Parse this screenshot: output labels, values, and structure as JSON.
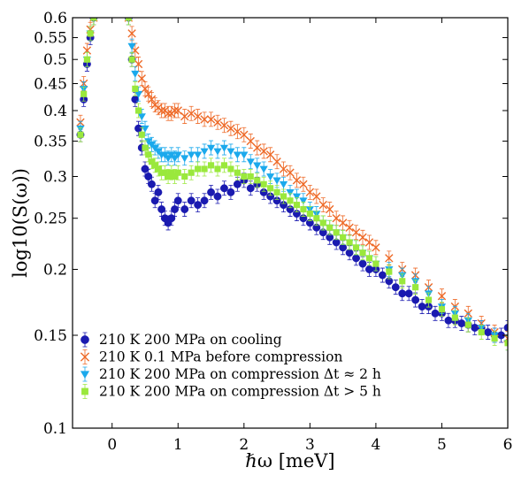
{
  "chart_data": {
    "type": "scatter",
    "title": "",
    "xlabel": "ℏω [meV]",
    "ylabel": "log10(S(ω))",
    "xlim": [
      -0.6,
      6
    ],
    "ylim": [
      0.1,
      0.6
    ],
    "y_scale": "log",
    "grid": false,
    "legend_position": "bottom-left",
    "xticks": [
      "0",
      "1",
      "2",
      "3",
      "4",
      "5",
      "6"
    ],
    "yticks": [
      "0.1",
      "0.15",
      "0.2",
      "0.25",
      "0.3",
      "0.35",
      "0.4",
      "0.45",
      "0.5",
      "0.55",
      "0.6"
    ],
    "series": [
      {
        "name": "210 K 200 MPa on cooling",
        "color": "#1a1ab0",
        "marker": "circle",
        "x": [
          -0.48,
          -0.43,
          -0.38,
          -0.33,
          -0.28,
          0.25,
          0.3,
          0.35,
          0.4,
          0.45,
          0.5,
          0.55,
          0.6,
          0.65,
          0.7,
          0.75,
          0.8,
          0.85,
          0.9,
          0.95,
          1.0,
          1.1,
          1.2,
          1.3,
          1.4,
          1.5,
          1.6,
          1.7,
          1.8,
          1.9,
          2.0,
          2.1,
          2.2,
          2.3,
          2.4,
          2.5,
          2.6,
          2.7,
          2.8,
          2.9,
          3.0,
          3.1,
          3.2,
          3.3,
          3.4,
          3.5,
          3.6,
          3.7,
          3.8,
          3.9,
          4.0,
          4.1,
          4.2,
          4.3,
          4.4,
          4.5,
          4.6,
          4.7,
          4.8,
          4.9,
          5.0,
          5.1,
          5.2,
          5.3,
          5.4,
          5.5,
          5.6,
          5.7,
          5.8,
          5.9,
          6.0
        ],
        "y": [
          0.36,
          0.42,
          0.49,
          0.55,
          0.6,
          0.6,
          0.5,
          0.42,
          0.37,
          0.34,
          0.31,
          0.3,
          0.29,
          0.27,
          0.28,
          0.26,
          0.25,
          0.245,
          0.25,
          0.26,
          0.27,
          0.26,
          0.27,
          0.265,
          0.27,
          0.28,
          0.275,
          0.285,
          0.28,
          0.29,
          0.295,
          0.285,
          0.29,
          0.28,
          0.275,
          0.27,
          0.265,
          0.26,
          0.255,
          0.25,
          0.245,
          0.24,
          0.235,
          0.23,
          0.225,
          0.22,
          0.215,
          0.21,
          0.205,
          0.2,
          0.2,
          0.195,
          0.19,
          0.185,
          0.18,
          0.18,
          0.175,
          0.17,
          0.17,
          0.165,
          0.165,
          0.16,
          0.16,
          0.158,
          0.157,
          0.155,
          0.155,
          0.152,
          0.15,
          0.15,
          0.155
        ]
      },
      {
        "name": "210 K 0.1 MPa before compression",
        "color": "#ee6a28",
        "marker": "x",
        "x": [
          -0.48,
          -0.43,
          -0.38,
          -0.33,
          -0.28,
          0.25,
          0.3,
          0.35,
          0.4,
          0.45,
          0.5,
          0.55,
          0.6,
          0.65,
          0.7,
          0.75,
          0.8,
          0.85,
          0.9,
          0.95,
          1.0,
          1.1,
          1.2,
          1.3,
          1.4,
          1.5,
          1.6,
          1.7,
          1.8,
          1.9,
          2.0,
          2.1,
          2.2,
          2.3,
          2.4,
          2.5,
          2.6,
          2.7,
          2.8,
          2.9,
          3.0,
          3.1,
          3.2,
          3.3,
          3.4,
          3.5,
          3.6,
          3.7,
          3.8,
          3.9,
          4.0,
          4.2,
          4.4,
          4.6,
          4.8,
          5.0,
          5.2,
          5.4,
          5.6,
          5.8,
          6.0
        ],
        "y": [
          0.38,
          0.45,
          0.52,
          0.57,
          0.6,
          0.6,
          0.56,
          0.52,
          0.49,
          0.46,
          0.44,
          0.43,
          0.42,
          0.41,
          0.405,
          0.4,
          0.4,
          0.395,
          0.395,
          0.4,
          0.4,
          0.39,
          0.395,
          0.39,
          0.385,
          0.385,
          0.38,
          0.375,
          0.37,
          0.365,
          0.36,
          0.35,
          0.34,
          0.335,
          0.33,
          0.32,
          0.31,
          0.305,
          0.295,
          0.29,
          0.28,
          0.275,
          0.265,
          0.26,
          0.25,
          0.245,
          0.24,
          0.235,
          0.23,
          0.225,
          0.22,
          0.21,
          0.2,
          0.195,
          0.185,
          0.178,
          0.17,
          0.165,
          0.158,
          0.152,
          0.148
        ]
      },
      {
        "name": "210 K 200 MPa on compression Δt ≈ 2 h",
        "color": "#1ba9ec",
        "marker": "triangle-down",
        "x": [
          -0.48,
          -0.43,
          -0.38,
          -0.33,
          -0.28,
          0.25,
          0.3,
          0.35,
          0.4,
          0.45,
          0.5,
          0.55,
          0.6,
          0.65,
          0.7,
          0.75,
          0.8,
          0.85,
          0.9,
          0.95,
          1.0,
          1.1,
          1.2,
          1.3,
          1.4,
          1.5,
          1.6,
          1.7,
          1.8,
          1.9,
          2.0,
          2.1,
          2.2,
          2.3,
          2.4,
          2.5,
          2.6,
          2.7,
          2.8,
          2.9,
          3.0,
          3.1,
          3.2,
          3.3,
          3.4,
          3.5,
          3.6,
          3.7,
          3.8,
          3.9,
          4.0,
          4.2,
          4.4,
          4.6,
          4.8,
          5.0,
          5.2,
          5.4,
          5.6,
          5.8,
          6.0
        ],
        "y": [
          0.37,
          0.44,
          0.5,
          0.56,
          0.6,
          0.6,
          0.53,
          0.47,
          0.43,
          0.39,
          0.37,
          0.35,
          0.345,
          0.34,
          0.335,
          0.33,
          0.33,
          0.325,
          0.33,
          0.325,
          0.33,
          0.325,
          0.33,
          0.33,
          0.335,
          0.34,
          0.335,
          0.34,
          0.335,
          0.33,
          0.33,
          0.32,
          0.315,
          0.31,
          0.3,
          0.295,
          0.29,
          0.28,
          0.275,
          0.27,
          0.26,
          0.255,
          0.245,
          0.24,
          0.235,
          0.23,
          0.225,
          0.22,
          0.215,
          0.21,
          0.205,
          0.2,
          0.195,
          0.19,
          0.18,
          0.17,
          0.165,
          0.16,
          0.155,
          0.15,
          0.145
        ]
      },
      {
        "name": "210 K 200 MPa on compression Δt > 5 h",
        "color": "#9ae83c",
        "marker": "square",
        "x": [
          -0.48,
          -0.43,
          -0.38,
          -0.33,
          -0.28,
          0.25,
          0.3,
          0.35,
          0.4,
          0.45,
          0.5,
          0.55,
          0.6,
          0.65,
          0.7,
          0.75,
          0.8,
          0.85,
          0.9,
          0.95,
          1.0,
          1.1,
          1.2,
          1.3,
          1.4,
          1.5,
          1.6,
          1.7,
          1.8,
          1.9,
          2.0,
          2.1,
          2.2,
          2.3,
          2.4,
          2.5,
          2.6,
          2.7,
          2.8,
          2.9,
          3.0,
          3.1,
          3.2,
          3.3,
          3.4,
          3.5,
          3.6,
          3.7,
          3.8,
          3.9,
          4.0,
          4.2,
          4.4,
          4.6,
          4.8,
          5.0,
          5.2,
          5.4,
          5.6,
          5.8,
          6.0
        ],
        "y": [
          0.36,
          0.43,
          0.5,
          0.56,
          0.6,
          0.6,
          0.5,
          0.44,
          0.4,
          0.36,
          0.34,
          0.33,
          0.32,
          0.315,
          0.31,
          0.305,
          0.305,
          0.3,
          0.305,
          0.3,
          0.305,
          0.3,
          0.305,
          0.31,
          0.31,
          0.315,
          0.31,
          0.315,
          0.31,
          0.305,
          0.3,
          0.3,
          0.295,
          0.29,
          0.285,
          0.28,
          0.275,
          0.27,
          0.265,
          0.26,
          0.255,
          0.25,
          0.245,
          0.24,
          0.235,
          0.23,
          0.225,
          0.22,
          0.215,
          0.21,
          0.205,
          0.198,
          0.19,
          0.185,
          0.175,
          0.168,
          0.162,
          0.157,
          0.152,
          0.148,
          0.145
        ]
      }
    ]
  }
}
